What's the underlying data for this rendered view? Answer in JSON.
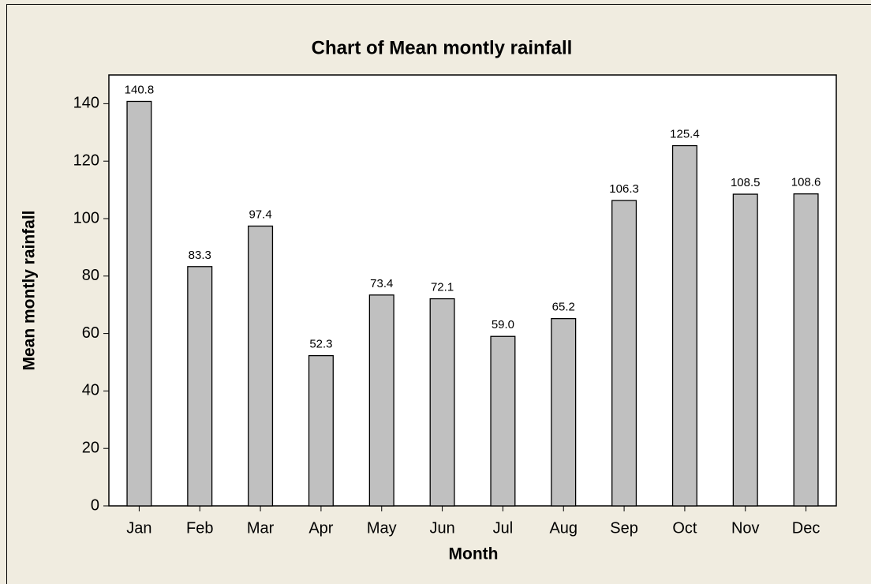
{
  "chart_data": {
    "type": "bar",
    "title": "Chart of Mean montly rainfall",
    "x_label": "Month",
    "y_label": "Mean montly rainfall",
    "categories": [
      "Jan",
      "Feb",
      "Mar",
      "Apr",
      "May",
      "Jun",
      "Jul",
      "Aug",
      "Sep",
      "Oct",
      "Nov",
      "Dec"
    ],
    "values": [
      140.8,
      83.3,
      97.4,
      52.3,
      73.4,
      72.1,
      59.0,
      65.2,
      106.3,
      125.4,
      108.5,
      108.6
    ],
    "value_labels": [
      "140.8",
      "83.3",
      "97.4",
      "52.3",
      "73.4",
      "72.1",
      "59.0",
      "65.2",
      "106.3",
      "125.4",
      "108.5",
      "108.6"
    ],
    "color": "#c0c0c0",
    "ylim": [
      0,
      150
    ],
    "yticks": [
      0,
      20,
      40,
      60,
      80,
      100,
      120,
      140
    ],
    "grid": false
  }
}
